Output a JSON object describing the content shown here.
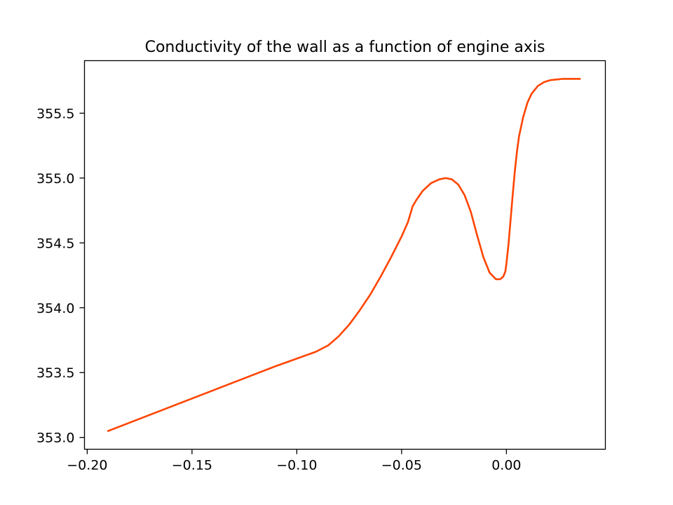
{
  "chart_data": {
    "type": "line",
    "title": "Conductivity of the wall as a function of engine axis",
    "xlabel": "",
    "ylabel": "",
    "xlim": [
      -0.2013,
      0.0472
    ],
    "ylim": [
      352.909,
      355.905
    ],
    "xticks": [
      -0.2,
      -0.15,
      -0.1,
      -0.05,
      0.0
    ],
    "xtick_labels": [
      "−0.20",
      "−0.15",
      "−0.10",
      "−0.05",
      "0.00"
    ],
    "yticks": [
      353.0,
      353.5,
      354.0,
      354.5,
      355.0,
      355.5
    ],
    "ytick_labels": [
      "353.0",
      "353.5",
      "354.0",
      "354.5",
      "355.0",
      "355.5"
    ],
    "grid": false,
    "series": [
      {
        "color": "#ff4500",
        "x": [
          -0.19,
          -0.15,
          -0.11,
          -0.091,
          -0.085,
          -0.08,
          -0.075,
          -0.07,
          -0.065,
          -0.06,
          -0.055,
          -0.05,
          -0.047,
          -0.0455,
          -0.0448,
          -0.043,
          -0.04,
          -0.036,
          -0.032,
          -0.029,
          -0.026,
          -0.023,
          -0.02,
          -0.017,
          -0.014,
          -0.011,
          -0.008,
          -0.005,
          -0.003,
          -0.0015,
          -0.0005,
          0.0,
          0.001,
          0.002,
          0.003,
          0.004,
          0.005,
          0.006,
          0.008,
          0.01,
          0.012,
          0.015,
          0.018,
          0.021,
          0.024,
          0.027,
          0.03,
          0.035
        ],
        "y": [
          353.05,
          353.3,
          353.55,
          353.66,
          353.71,
          353.78,
          353.87,
          353.98,
          354.1,
          354.24,
          354.39,
          354.55,
          354.66,
          354.74,
          354.78,
          354.83,
          354.9,
          354.96,
          354.99,
          355.0,
          354.99,
          354.95,
          354.87,
          354.74,
          354.56,
          354.39,
          354.27,
          354.22,
          354.22,
          354.24,
          354.28,
          354.34,
          354.49,
          354.68,
          354.87,
          355.05,
          355.2,
          355.32,
          355.47,
          355.58,
          355.65,
          355.71,
          355.74,
          355.755,
          355.76,
          355.765,
          355.765,
          355.765
        ]
      }
    ]
  }
}
